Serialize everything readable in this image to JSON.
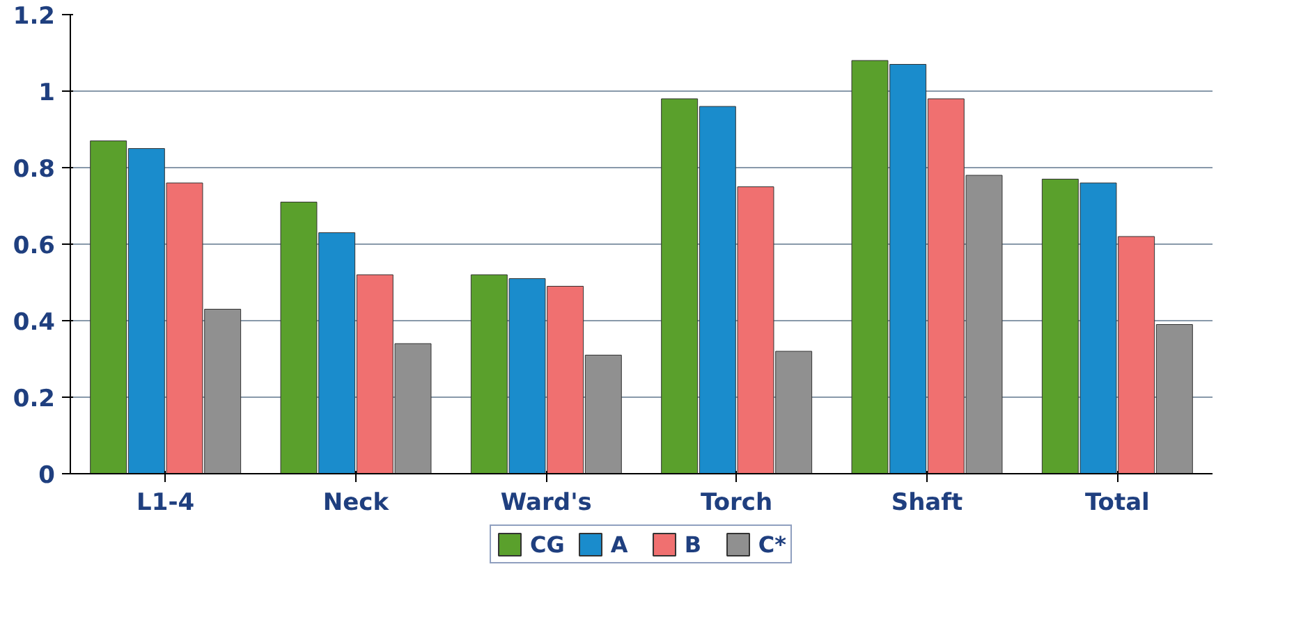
{
  "chart_data": {
    "type": "bar",
    "categories": [
      "L1-4",
      "Neck",
      "Ward's",
      "Torch",
      "Shaft",
      "Total"
    ],
    "series": [
      {
        "name": "CG",
        "color": "#5aa02c",
        "values": [
          0.87,
          0.71,
          0.52,
          0.98,
          1.08,
          0.77
        ]
      },
      {
        "name": "A",
        "color": "#1a8ccc",
        "values": [
          0.85,
          0.63,
          0.51,
          0.96,
          1.07,
          0.76
        ]
      },
      {
        "name": "B",
        "color": "#f07070",
        "values": [
          0.76,
          0.52,
          0.49,
          0.75,
          0.98,
          0.62
        ]
      },
      {
        "name": "C*",
        "color": "#909090",
        "values": [
          0.43,
          0.34,
          0.31,
          0.32,
          0.78,
          0.39
        ]
      }
    ],
    "ylim": [
      0,
      1.2
    ],
    "yticks": [
      0,
      0.2,
      0.4,
      0.6,
      0.8,
      1,
      1.2
    ],
    "grid": "y",
    "legend": "bottom"
  }
}
